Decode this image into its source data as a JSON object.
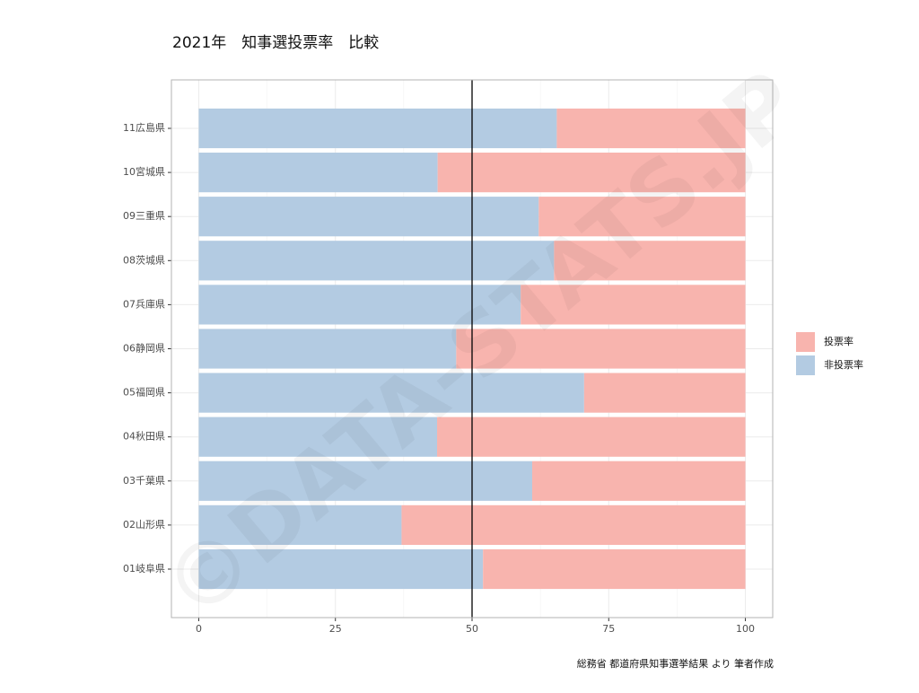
{
  "chart_data": {
    "type": "stacked_barh",
    "title": "2021年　知事選投票率　比較",
    "caption": "総務省 都道府県知事選挙結果 より 筆者作成",
    "watermark": "©DATA-STATS.JP",
    "categories": [
      "01岐阜県",
      "02山形県",
      "03千葉県",
      "04秋田県",
      "05福岡県",
      "06静岡県",
      "07兵庫県",
      "08茨城県",
      "09三重県",
      "10宮城県",
      "11広島県"
    ],
    "series": [
      {
        "name": "投票率",
        "color": "#f8b4ae",
        "values": [
          48.0,
          62.9,
          39.0,
          56.4,
          29.5,
          52.9,
          41.1,
          35.0,
          37.8,
          56.3,
          34.5
        ]
      },
      {
        "name": "非投票率",
        "color": "#b3cbe2",
        "values": [
          52.0,
          37.1,
          61.0,
          43.6,
          70.5,
          47.1,
          58.9,
          65.0,
          62.2,
          43.7,
          65.5
        ]
      }
    ],
    "xlim": [
      -5,
      105
    ],
    "xticks": [
      0,
      25,
      50,
      75,
      100
    ],
    "vline": 50,
    "grid": true,
    "legend": "right"
  }
}
